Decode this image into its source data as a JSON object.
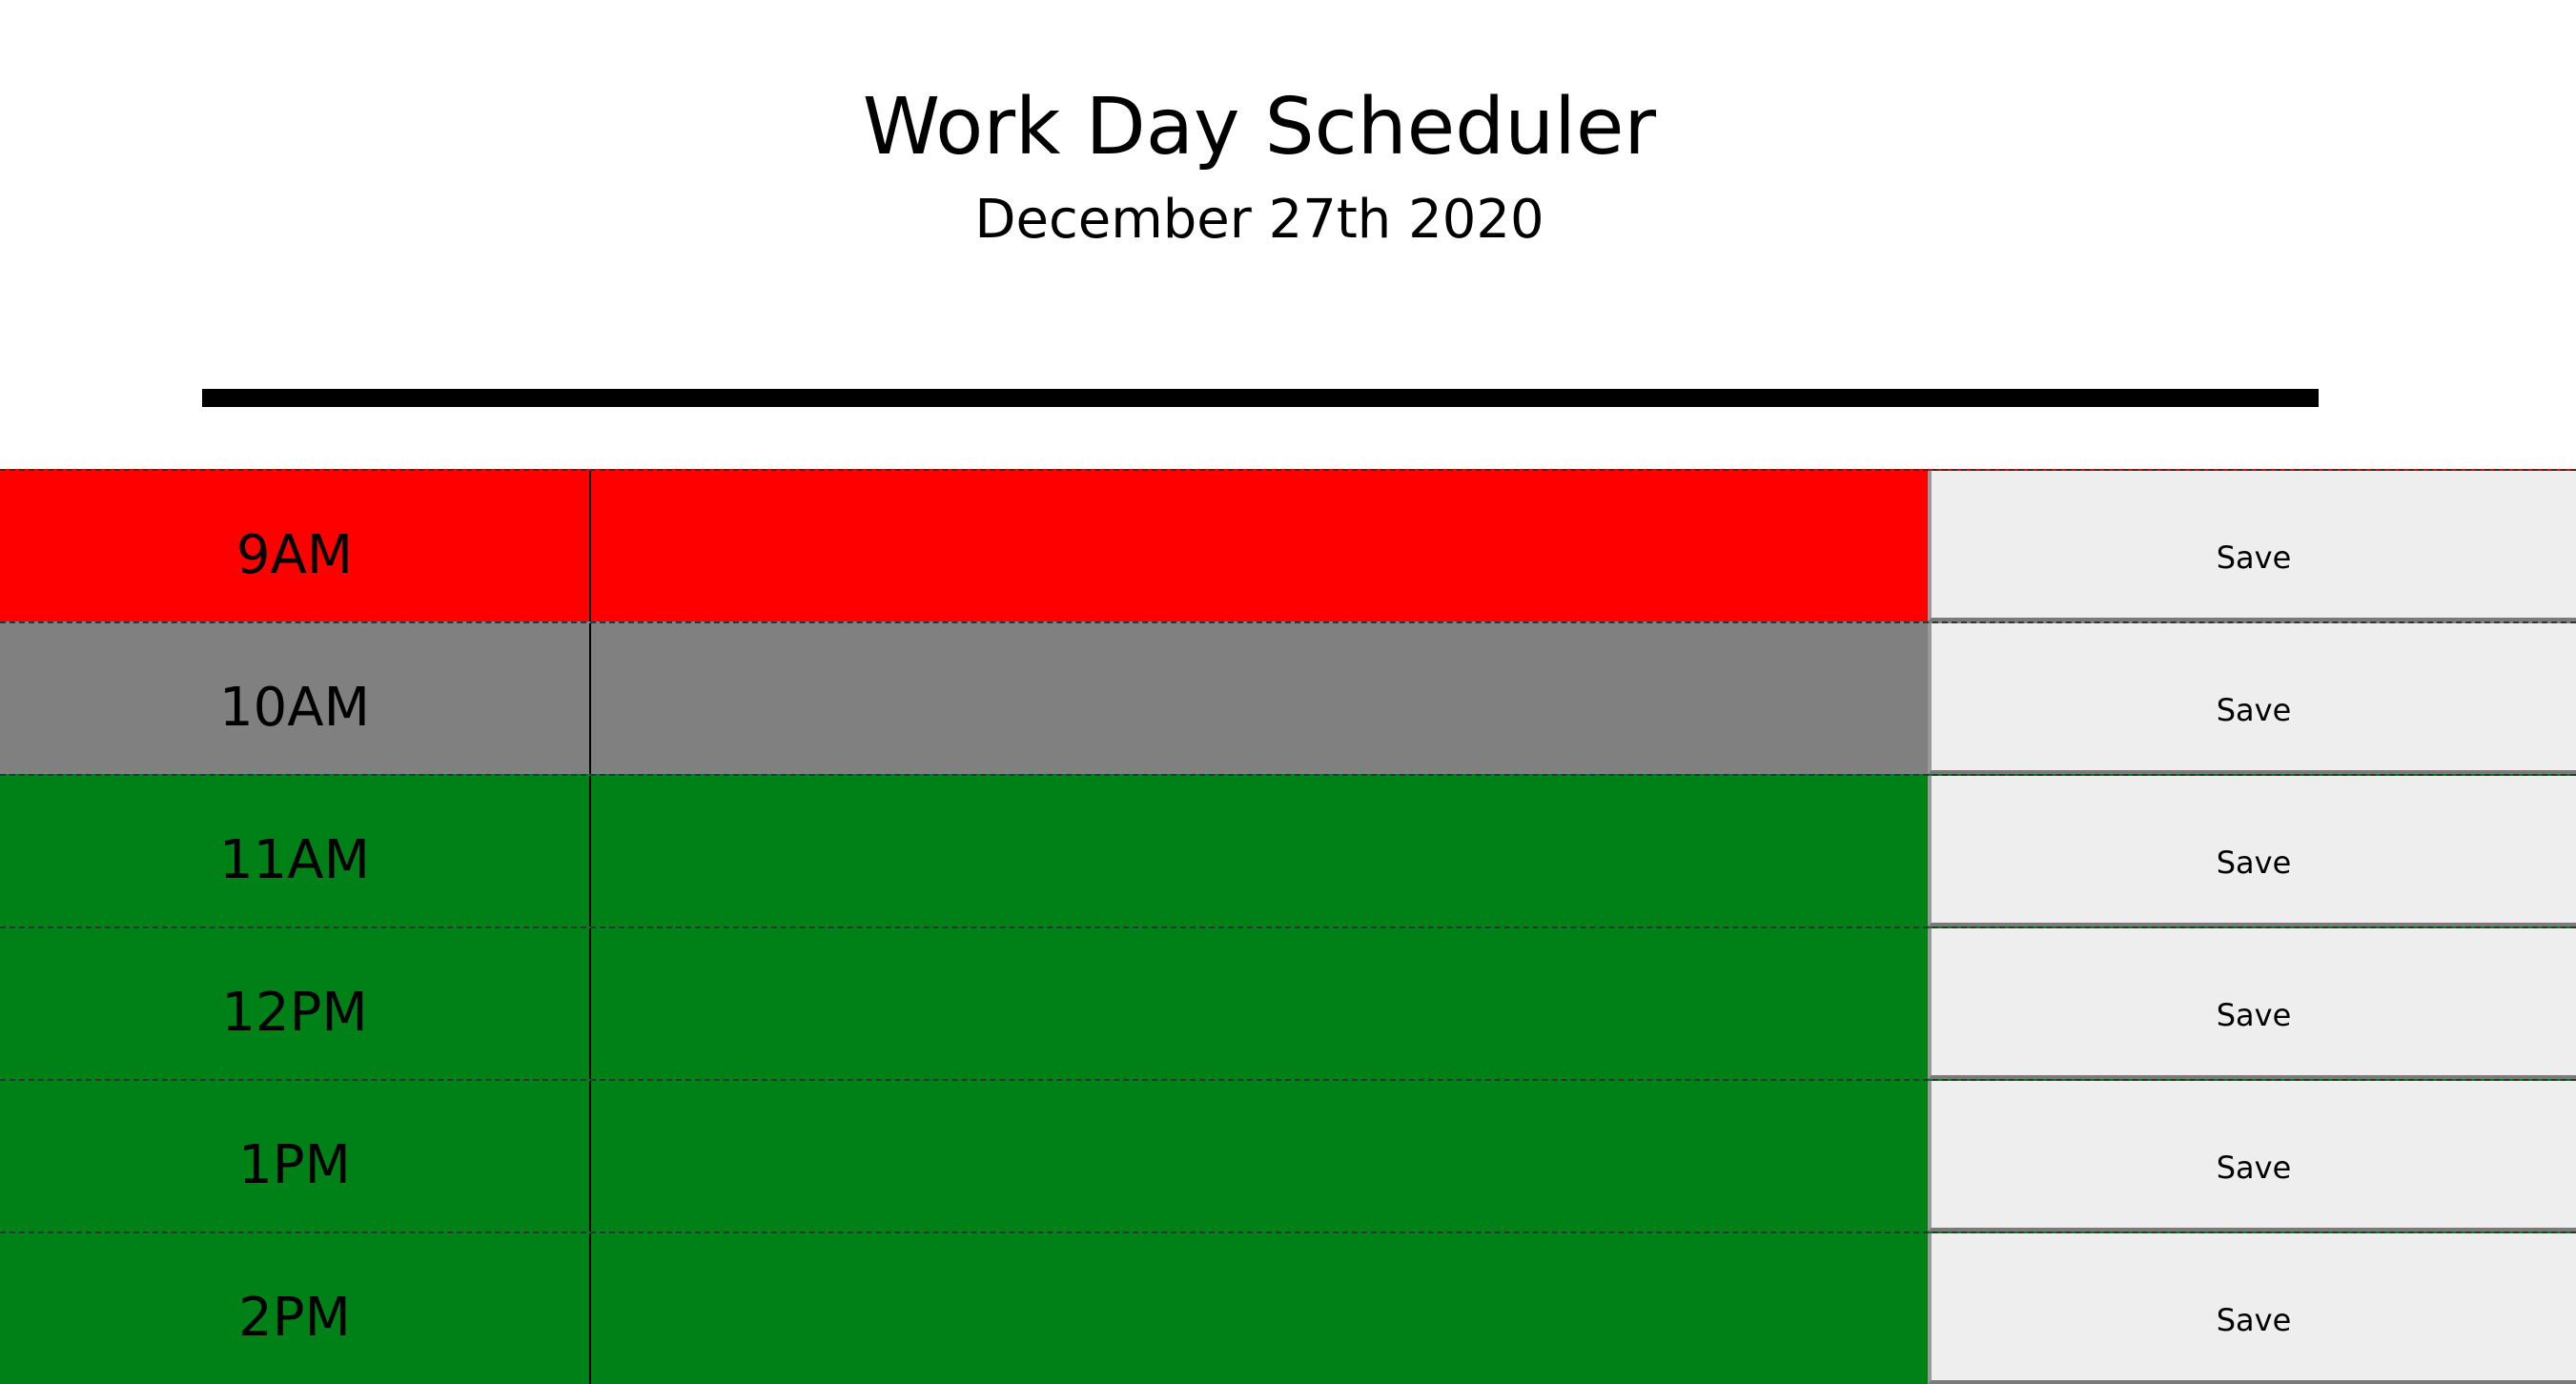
{
  "header": {
    "title": "Work Day Scheduler",
    "date": "December 27th 2020"
  },
  "colors": {
    "past": "#ff0000",
    "present": "#808080",
    "future": "#008118"
  },
  "timeblocks": [
    {
      "hour": "9AM",
      "state": "past",
      "text": "",
      "save_label": "Save"
    },
    {
      "hour": "10AM",
      "state": "present",
      "text": "",
      "save_label": "Save"
    },
    {
      "hour": "11AM",
      "state": "future",
      "text": "",
      "save_label": "Save"
    },
    {
      "hour": "12PM",
      "state": "future",
      "text": "",
      "save_label": "Save"
    },
    {
      "hour": "1PM",
      "state": "future",
      "text": "",
      "save_label": "Save"
    },
    {
      "hour": "2PM",
      "state": "future",
      "text": "",
      "save_label": "Save"
    }
  ]
}
